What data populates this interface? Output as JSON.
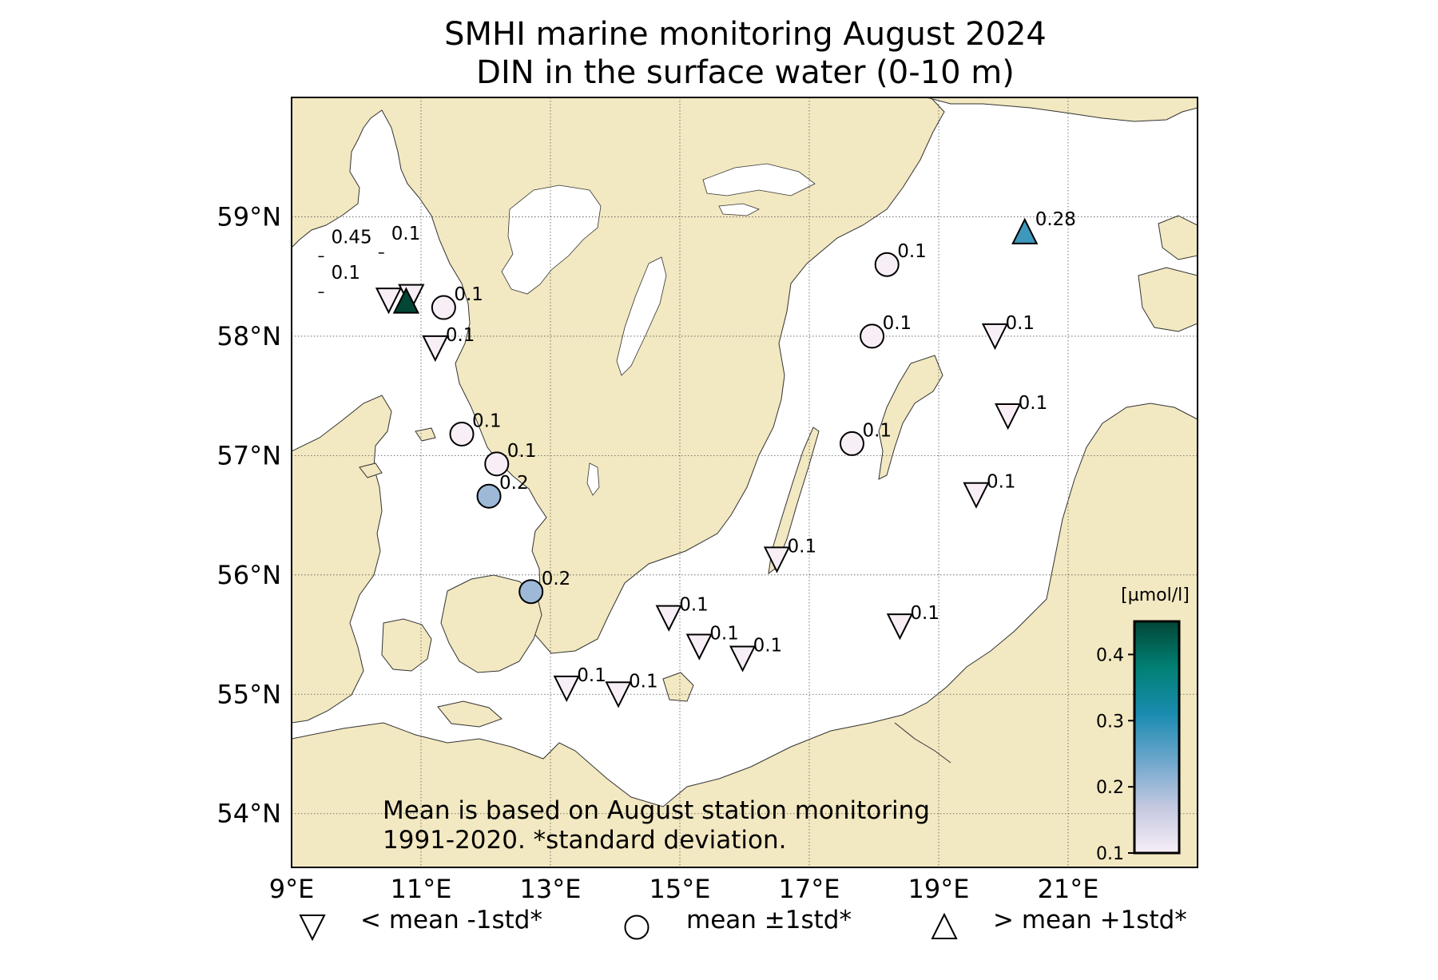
{
  "title": {
    "line1": "SMHI marine monitoring August 2024",
    "line2": "DIN in the surface water (0-10 m)"
  },
  "map": {
    "lon_range": [
      9,
      23
    ],
    "lat_range": [
      53.55,
      60.0
    ],
    "lon_ticks": [
      {
        "value": 9,
        "label": "9°E"
      },
      {
        "value": 11,
        "label": "11°E"
      },
      {
        "value": 13,
        "label": "13°E"
      },
      {
        "value": 15,
        "label": "15°E"
      },
      {
        "value": 17,
        "label": "17°E"
      },
      {
        "value": 19,
        "label": "19°E"
      },
      {
        "value": 21,
        "label": "21°E"
      }
    ],
    "lat_ticks": [
      {
        "value": 54,
        "label": "54°N"
      },
      {
        "value": 55,
        "label": "55°N"
      },
      {
        "value": 56,
        "label": "56°N"
      },
      {
        "value": 57,
        "label": "57°N"
      },
      {
        "value": 58,
        "label": "58°N"
      },
      {
        "value": 59,
        "label": "59°N"
      }
    ],
    "grid": true,
    "colors": {
      "land": "#f2e8c1",
      "sea": "#ffffff",
      "coast": "#333333"
    }
  },
  "stations": [
    {
      "lon": 9.45,
      "lat": 58.72,
      "value": 0.45,
      "label": "0.45",
      "symbol": "none"
    },
    {
      "lon": 10.38,
      "lat": 58.75,
      "value": 0.1,
      "label": "0.1",
      "symbol": "none"
    },
    {
      "lon": 9.45,
      "lat": 58.42,
      "value": 0.1,
      "label": "0.1",
      "symbol": "none"
    },
    {
      "lon": 10.5,
      "lat": 58.3,
      "value": 0.1,
      "label": "",
      "symbol": "down"
    },
    {
      "lon": 10.85,
      "lat": 58.33,
      "value": 0.1,
      "label": "",
      "symbol": "down"
    },
    {
      "lon": 10.77,
      "lat": 58.29,
      "value": 0.45,
      "label": "",
      "symbol": "up"
    },
    {
      "lon": 11.35,
      "lat": 58.24,
      "value": 0.1,
      "label": "0.1",
      "symbol": "circle"
    },
    {
      "lon": 11.22,
      "lat": 57.9,
      "value": 0.1,
      "label": "0.1",
      "symbol": "down"
    },
    {
      "lon": 11.63,
      "lat": 57.18,
      "value": 0.1,
      "label": "0.1",
      "symbol": "circle"
    },
    {
      "lon": 12.17,
      "lat": 56.93,
      "value": 0.1,
      "label": "0.1",
      "symbol": "circle"
    },
    {
      "lon": 12.05,
      "lat": 56.66,
      "value": 0.2,
      "label": "0.2",
      "symbol": "circle"
    },
    {
      "lon": 12.7,
      "lat": 55.86,
      "value": 0.2,
      "label": "0.2",
      "symbol": "circle"
    },
    {
      "lon": 14.83,
      "lat": 55.64,
      "value": 0.1,
      "label": "0.1",
      "symbol": "down"
    },
    {
      "lon": 15.3,
      "lat": 55.4,
      "value": 0.1,
      "label": "0.1",
      "symbol": "down"
    },
    {
      "lon": 15.97,
      "lat": 55.3,
      "value": 0.1,
      "label": "0.1",
      "symbol": "down"
    },
    {
      "lon": 13.25,
      "lat": 55.05,
      "value": 0.1,
      "label": "0.1",
      "symbol": "down"
    },
    {
      "lon": 14.05,
      "lat": 55.0,
      "value": 0.1,
      "label": "0.1",
      "symbol": "down"
    },
    {
      "lon": 16.5,
      "lat": 56.13,
      "value": 0.1,
      "label": "0.1",
      "symbol": "down"
    },
    {
      "lon": 17.66,
      "lat": 57.1,
      "value": 0.1,
      "label": "0.1",
      "symbol": "circle"
    },
    {
      "lon": 17.97,
      "lat": 58.0,
      "value": 0.1,
      "label": "0.1",
      "symbol": "circle"
    },
    {
      "lon": 18.2,
      "lat": 58.6,
      "value": 0.1,
      "label": "0.1",
      "symbol": "circle"
    },
    {
      "lon": 20.33,
      "lat": 58.87,
      "value": 0.28,
      "label": "0.28",
      "symbol": "up"
    },
    {
      "lon": 19.87,
      "lat": 58.0,
      "value": 0.1,
      "label": "0.1",
      "symbol": "down"
    },
    {
      "lon": 20.07,
      "lat": 57.33,
      "value": 0.1,
      "label": "0.1",
      "symbol": "down"
    },
    {
      "lon": 19.58,
      "lat": 56.67,
      "value": 0.1,
      "label": "0.1",
      "symbol": "down"
    },
    {
      "lon": 18.4,
      "lat": 55.57,
      "value": 0.1,
      "label": "0.1",
      "symbol": "down"
    }
  ],
  "colorbar": {
    "label": "[µmol/l]",
    "min": 0.1,
    "max": 0.45,
    "ticks": [
      {
        "value": 0.1,
        "label": "0.1"
      },
      {
        "value": 0.2,
        "label": "0.2"
      },
      {
        "value": 0.3,
        "label": "0.3"
      },
      {
        "value": 0.4,
        "label": "0.4"
      }
    ],
    "stops": [
      "#f7eef6",
      "#c3c8e0",
      "#6da6cc",
      "#1a8bb0",
      "#018074",
      "#014636"
    ]
  },
  "note": {
    "line1": "Mean is based on August station monitoring",
    "line2": "1991-2020. *standard deviation."
  },
  "legend": [
    {
      "symbol": "down",
      "label": "< mean -1std*"
    },
    {
      "symbol": "circle",
      "label": "mean ±1std*"
    },
    {
      "symbol": "up",
      "label": "> mean +1std*"
    }
  ]
}
